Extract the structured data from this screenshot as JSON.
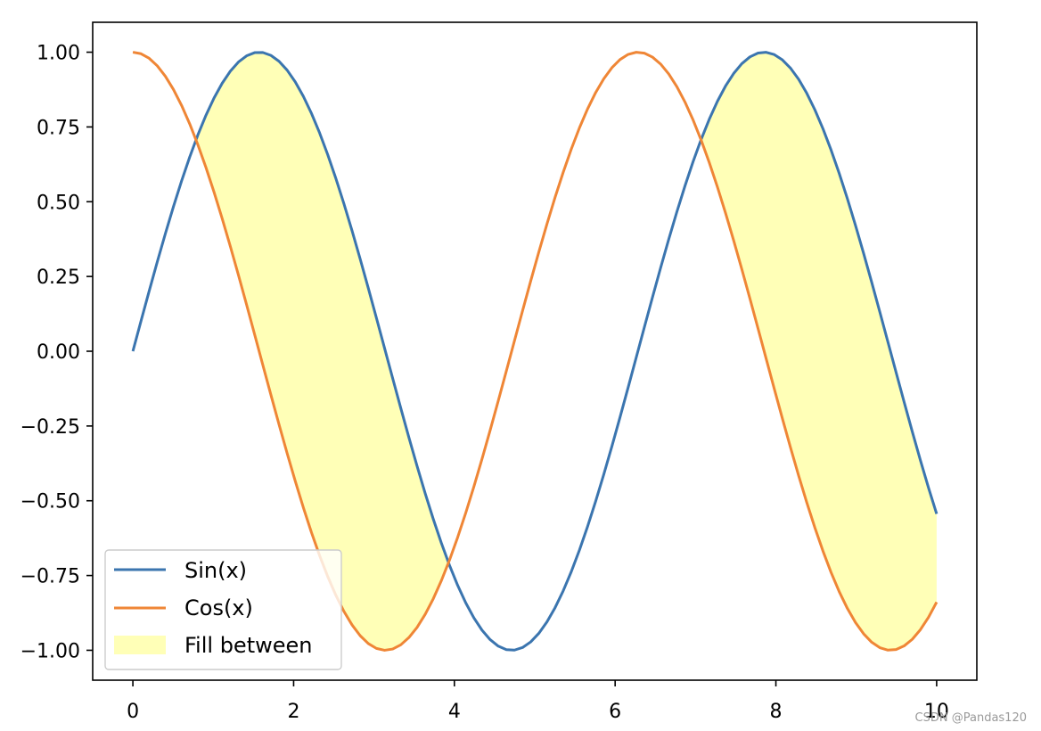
{
  "chart_data": {
    "type": "line",
    "title": "",
    "xlabel": "",
    "ylabel": "",
    "xlim": [
      -0.5,
      10.5
    ],
    "ylim": [
      -1.1,
      1.1
    ],
    "x_domain": [
      0,
      10
    ],
    "x_samples": 100,
    "x_ticks": [
      0,
      2,
      4,
      6,
      8,
      10
    ],
    "x_tick_labels": [
      "0",
      "2",
      "4",
      "6",
      "8",
      "10"
    ],
    "y_ticks": [
      1.0,
      0.75,
      0.5,
      0.25,
      0.0,
      -0.25,
      -0.5,
      -0.75,
      -1.0
    ],
    "y_tick_labels": [
      "1.00",
      "0.75",
      "0.50",
      "0.25",
      "0.00",
      "−0.25",
      "−0.50",
      "−0.75",
      "−1.00"
    ],
    "grid": false,
    "legend_position": "lower-left",
    "series": [
      {
        "name": "Sin(x)",
        "function": "sin",
        "color": "#3b75af"
      },
      {
        "name": "Cos(x)",
        "function": "cos",
        "color": "#ef8636"
      }
    ],
    "fill": {
      "name": "Fill between",
      "between": [
        "sin",
        "cos"
      ],
      "where": "sin > cos",
      "color": "#ffff99",
      "alpha": 0.7
    }
  },
  "watermark": "CSDN @Pandas120"
}
